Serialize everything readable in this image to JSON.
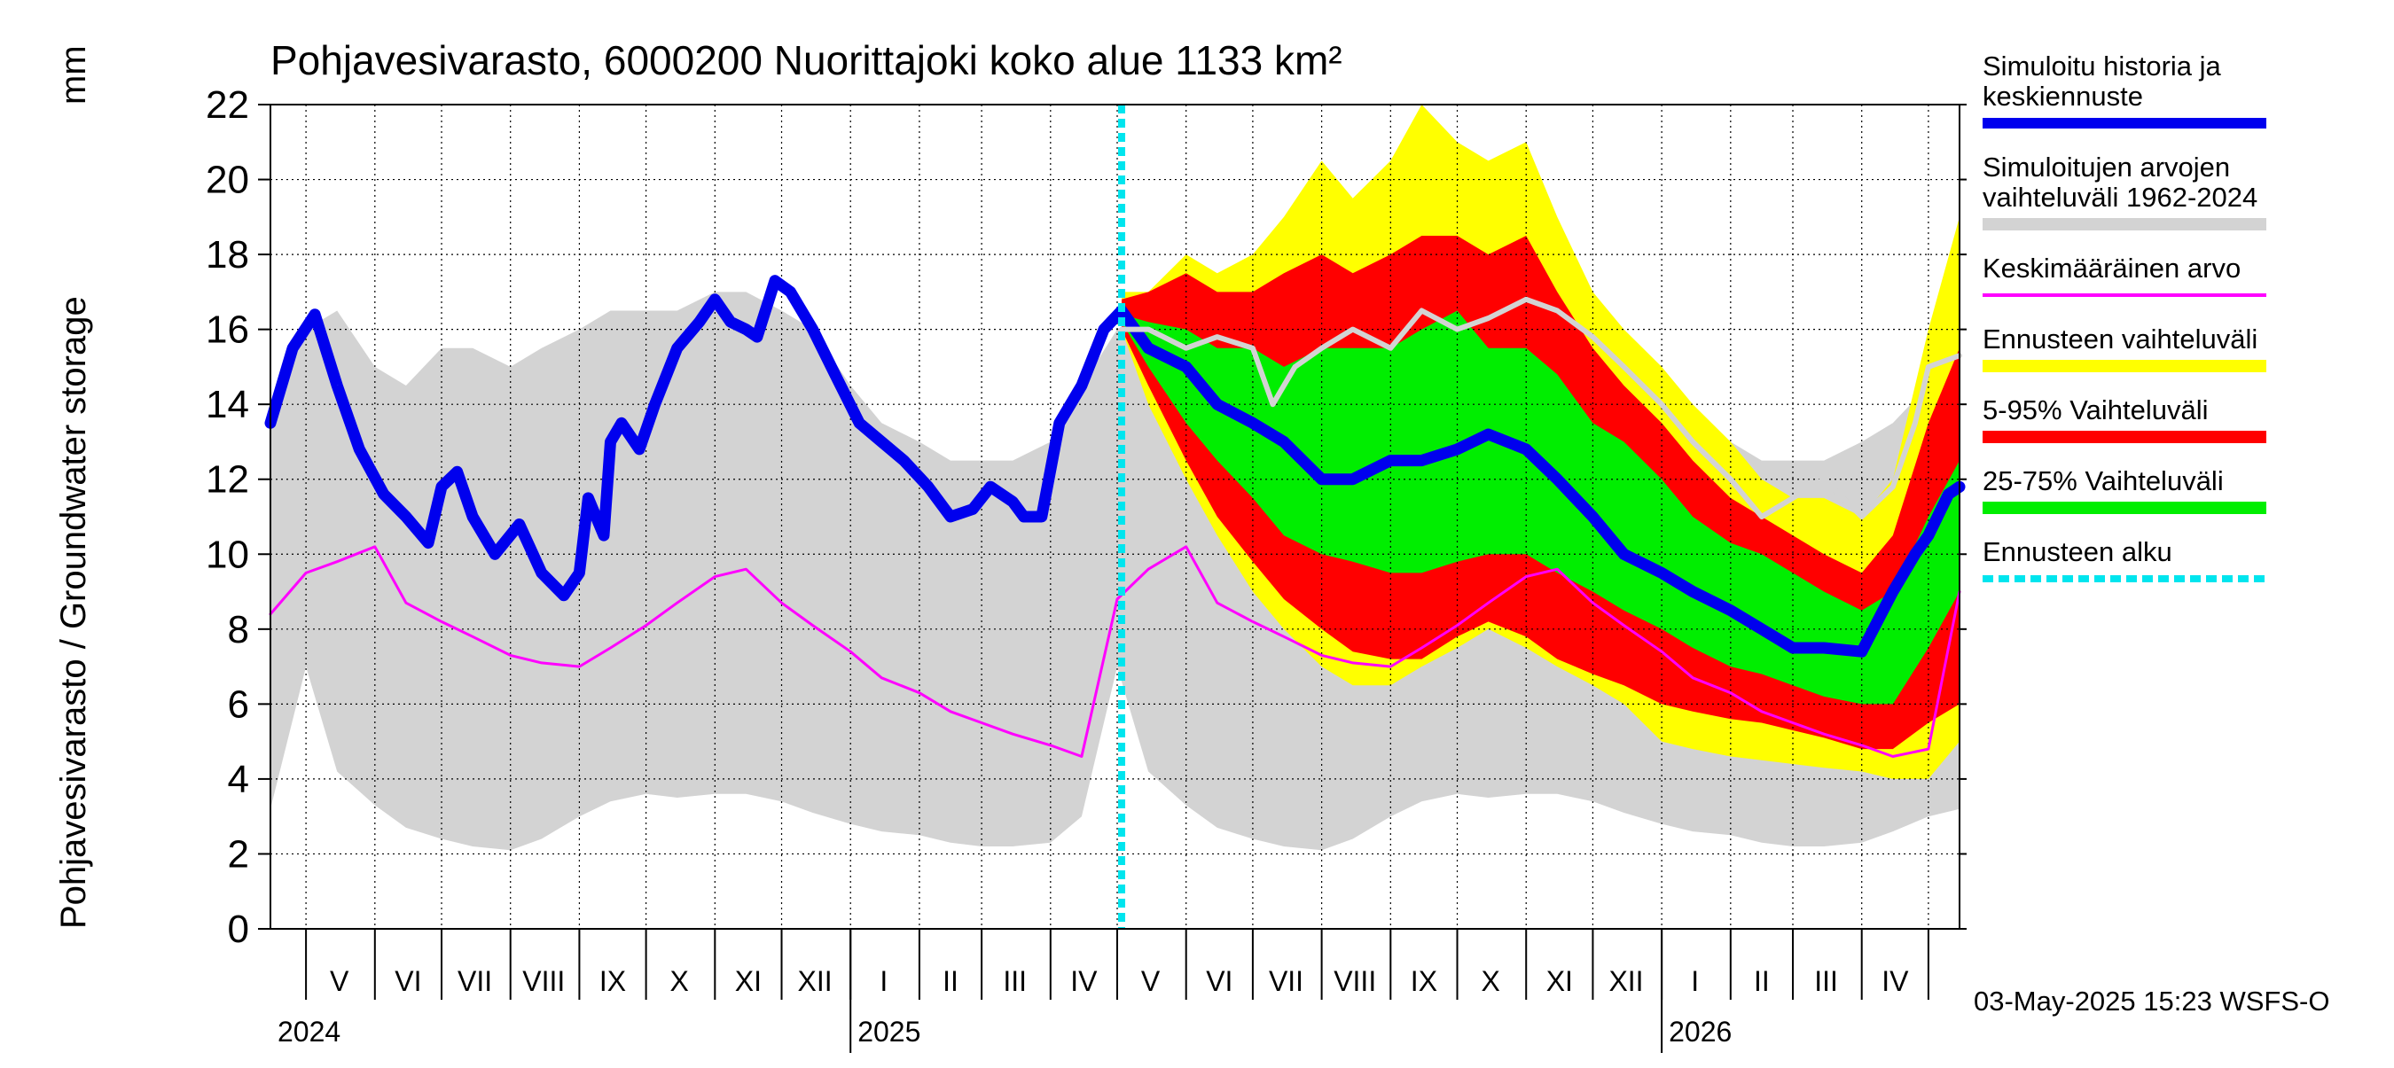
{
  "chart_data": {
    "type": "area",
    "title": "Pohjavesivarasto, 6000200 Nuorittajoki koko alue 1133 km²",
    "ylabel": "Pohjavesivarasto / Groundwater storage",
    "yunit": "mm",
    "ylim": [
      0,
      22
    ],
    "yticks": [
      0,
      2,
      4,
      6,
      8,
      10,
      12,
      14,
      16,
      18,
      20,
      22
    ],
    "xlim": [
      "2024-04-15",
      "2026-05-15"
    ],
    "grid": true,
    "legend_position": "right",
    "footer": "03-May-2025 15:23 WSFS-O",
    "forecast_start": "2025-05-03",
    "months": [
      {
        "label": "V",
        "start": "2024-05-01"
      },
      {
        "label": "VI",
        "start": "2024-06-01"
      },
      {
        "label": "VII",
        "start": "2024-07-01"
      },
      {
        "label": "VIII",
        "start": "2024-08-01"
      },
      {
        "label": "IX",
        "start": "2024-09-01"
      },
      {
        "label": "X",
        "start": "2024-10-01"
      },
      {
        "label": "XI",
        "start": "2024-11-01"
      },
      {
        "label": "XII",
        "start": "2024-12-01"
      },
      {
        "label": "I",
        "start": "2025-01-01"
      },
      {
        "label": "II",
        "start": "2025-02-01"
      },
      {
        "label": "III",
        "start": "2025-03-01"
      },
      {
        "label": "IV",
        "start": "2025-04-01"
      },
      {
        "label": "V",
        "start": "2025-05-01"
      },
      {
        "label": "VI",
        "start": "2025-06-01"
      },
      {
        "label": "VII",
        "start": "2025-07-01"
      },
      {
        "label": "VIII",
        "start": "2025-08-01"
      },
      {
        "label": "IX",
        "start": "2025-09-01"
      },
      {
        "label": "X",
        "start": "2025-10-01"
      },
      {
        "label": "XI",
        "start": "2025-11-01"
      },
      {
        "label": "XII",
        "start": "2025-12-01"
      },
      {
        "label": "I",
        "start": "2026-01-01"
      },
      {
        "label": "II",
        "start": "2026-02-01"
      },
      {
        "label": "III",
        "start": "2026-03-01"
      },
      {
        "label": "IV",
        "start": "2026-04-01"
      }
    ],
    "month_ends": [
      "2026-05-01"
    ],
    "years": [
      {
        "label": "2024",
        "at": "2024-04-15"
      },
      {
        "label": "2025",
        "at": "2025-01-01"
      },
      {
        "label": "2026",
        "at": "2026-01-01"
      }
    ],
    "legend": [
      {
        "text": [
          "Simuloitu historia ja",
          "keskiennuste"
        ],
        "color": "#0000ee",
        "style": "thick"
      },
      {
        "text": [
          "Simuloitujen arvojen",
          "vaihteluväli 1962-2024"
        ],
        "color": "#d3d3d3",
        "style": "band"
      },
      {
        "text": [
          "Keskimääräinen arvo"
        ],
        "color": "#ff00ff",
        "style": "thin"
      },
      {
        "text": [
          "Ennusteen vaihteluväli"
        ],
        "color": "#ffff00",
        "style": "band"
      },
      {
        "text": [
          "5-95% Vaihteluväli"
        ],
        "color": "#ff0000",
        "style": "band"
      },
      {
        "text": [
          "25-75% Vaihteluväli"
        ],
        "color": "#00ee00",
        "style": "band"
      },
      {
        "text": [
          "Ennusteen alku"
        ],
        "color": "#00e5ee",
        "style": "dashed"
      }
    ],
    "series": [
      {
        "name": "Simuloitujen arvojen vaihteluväli 1962-2024",
        "kind": "band",
        "color": "#d3d3d3",
        "x": [
          "2024-04-15",
          "2024-05-01",
          "2024-05-15",
          "2024-06-01",
          "2024-06-15",
          "2024-07-01",
          "2024-07-15",
          "2024-08-01",
          "2024-08-15",
          "2024-09-01",
          "2024-09-15",
          "2024-10-01",
          "2024-10-15",
          "2024-11-01",
          "2024-11-15",
          "2024-12-01",
          "2024-12-15",
          "2025-01-01",
          "2025-01-15",
          "2025-02-01",
          "2025-02-15",
          "2025-03-01",
          "2025-03-15",
          "2025-04-01",
          "2025-04-15",
          "2025-05-01",
          "2025-05-15",
          "2025-06-01",
          "2025-06-15",
          "2025-07-01",
          "2025-07-15",
          "2025-08-01",
          "2025-08-15",
          "2025-09-01",
          "2025-09-15",
          "2025-10-01",
          "2025-10-15",
          "2025-11-01",
          "2025-11-15",
          "2025-12-01",
          "2025-12-15",
          "2026-01-01",
          "2026-01-15",
          "2026-02-01",
          "2026-02-15",
          "2026-03-01",
          "2026-03-15",
          "2026-04-01",
          "2026-04-15",
          "2026-05-01",
          "2026-05-15"
        ],
        "low": [
          3.2,
          7.0,
          4.2,
          3.3,
          2.7,
          2.4,
          2.2,
          2.1,
          2.4,
          3.0,
          3.4,
          3.6,
          3.5,
          3.6,
          3.6,
          3.4,
          3.1,
          2.8,
          2.6,
          2.5,
          2.3,
          2.2,
          2.2,
          2.3,
          3.0,
          7.0,
          4.2,
          3.3,
          2.7,
          2.4,
          2.2,
          2.1,
          2.4,
          3.0,
          3.4,
          3.6,
          3.5,
          3.6,
          3.6,
          3.4,
          3.1,
          2.8,
          2.6,
          2.5,
          2.3,
          2.2,
          2.2,
          2.3,
          2.6,
          3.0,
          3.2
        ],
        "high": [
          14.0,
          16.0,
          16.5,
          15.0,
          14.5,
          15.5,
          15.5,
          15.0,
          15.5,
          16.0,
          16.5,
          16.5,
          16.5,
          17.0,
          17.0,
          16.5,
          16.0,
          14.5,
          13.5,
          13.0,
          12.5,
          12.5,
          12.5,
          13.0,
          14.5,
          16.0,
          16.5,
          15.0,
          14.5,
          15.5,
          15.5,
          15.0,
          15.5,
          16.0,
          16.5,
          16.5,
          16.5,
          17.0,
          17.0,
          16.5,
          16.0,
          14.5,
          13.5,
          13.0,
          12.5,
          12.5,
          12.5,
          13.0,
          13.5,
          14.5,
          15.0
        ]
      },
      {
        "name": "Ennusteen vaihteluväli",
        "kind": "band",
        "color": "#ffff00",
        "x": [
          "2025-05-03",
          "2025-05-15",
          "2025-06-01",
          "2025-06-15",
          "2025-07-01",
          "2025-07-15",
          "2025-08-01",
          "2025-08-15",
          "2025-09-01",
          "2025-09-15",
          "2025-10-01",
          "2025-10-15",
          "2025-11-01",
          "2025-11-15",
          "2025-12-01",
          "2025-12-15",
          "2026-01-01",
          "2026-01-15",
          "2026-02-01",
          "2026-02-15",
          "2026-03-01",
          "2026-03-15",
          "2026-04-01",
          "2026-04-15",
          "2026-05-01",
          "2026-05-15"
        ],
        "low": [
          16.0,
          14.0,
          12.0,
          10.5,
          9.0,
          8.0,
          7.0,
          6.5,
          6.5,
          7.0,
          7.5,
          8.0,
          7.5,
          7.0,
          6.5,
          6.0,
          5.0,
          4.8,
          4.6,
          4.5,
          4.4,
          4.3,
          4.2,
          4.0,
          4.0,
          5.0
        ],
        "high": [
          17.0,
          17.0,
          18.0,
          17.5,
          18.0,
          19.0,
          20.5,
          19.5,
          20.5,
          22.0,
          21.0,
          20.5,
          21.0,
          19.0,
          17.0,
          16.0,
          15.0,
          14.0,
          13.0,
          12.0,
          11.5,
          11.5,
          11.0,
          12.0,
          16.0,
          19.0
        ]
      },
      {
        "name": "5-95% Vaihteluväli",
        "kind": "band",
        "color": "#ff0000",
        "x": [
          "2025-05-03",
          "2025-05-15",
          "2025-06-01",
          "2025-06-15",
          "2025-07-01",
          "2025-07-15",
          "2025-08-01",
          "2025-08-15",
          "2025-09-01",
          "2025-09-15",
          "2025-10-01",
          "2025-10-15",
          "2025-11-01",
          "2025-11-15",
          "2025-12-01",
          "2025-12-15",
          "2026-01-01",
          "2026-01-15",
          "2026-02-01",
          "2026-02-15",
          "2026-03-01",
          "2026-03-15",
          "2026-04-01",
          "2026-04-15",
          "2026-05-01",
          "2026-05-15"
        ],
        "low": [
          16.0,
          14.5,
          12.5,
          11.0,
          9.8,
          8.8,
          8.0,
          7.4,
          7.2,
          7.2,
          7.8,
          8.2,
          7.8,
          7.2,
          6.8,
          6.5,
          6.0,
          5.8,
          5.6,
          5.5,
          5.3,
          5.1,
          4.8,
          4.8,
          5.5,
          6.0
        ],
        "high": [
          16.8,
          17.0,
          17.5,
          17.0,
          17.0,
          17.5,
          18.0,
          17.5,
          18.0,
          18.5,
          18.5,
          18.0,
          18.5,
          17.0,
          15.5,
          14.5,
          13.5,
          12.5,
          11.5,
          11.0,
          10.5,
          10.0,
          9.5,
          10.5,
          13.5,
          15.5
        ]
      },
      {
        "name": "25-75% Vaihteluväli",
        "kind": "band",
        "color": "#00ee00",
        "x": [
          "2025-05-03",
          "2025-05-15",
          "2025-06-01",
          "2025-06-15",
          "2025-07-01",
          "2025-07-15",
          "2025-08-01",
          "2025-08-15",
          "2025-09-01",
          "2025-09-15",
          "2025-10-01",
          "2025-10-15",
          "2025-11-01",
          "2025-11-15",
          "2025-12-01",
          "2025-12-15",
          "2026-01-01",
          "2026-01-15",
          "2026-02-01",
          "2026-02-15",
          "2026-03-01",
          "2026-03-15",
          "2026-04-01",
          "2026-04-15",
          "2026-05-01",
          "2026-05-15"
        ],
        "low": [
          16.2,
          15.0,
          13.5,
          12.5,
          11.5,
          10.5,
          10.0,
          9.8,
          9.5,
          9.5,
          9.8,
          10.0,
          10.0,
          9.5,
          9.0,
          8.5,
          8.0,
          7.5,
          7.0,
          6.8,
          6.5,
          6.2,
          6.0,
          6.0,
          7.5,
          9.0
        ],
        "high": [
          16.4,
          16.2,
          16.0,
          15.5,
          15.5,
          15.0,
          15.5,
          15.5,
          15.5,
          16.0,
          16.5,
          15.5,
          15.5,
          14.8,
          13.5,
          13.0,
          12.0,
          11.0,
          10.3,
          10.0,
          9.5,
          9.0,
          8.5,
          9.0,
          11.0,
          12.5
        ]
      },
      {
        "name": "Keskimääräinen arvo",
        "kind": "line",
        "color": "#ff00ff",
        "x": [
          "2024-04-15",
          "2024-05-01",
          "2024-05-15",
          "2024-06-01",
          "2024-06-15",
          "2024-07-01",
          "2024-07-15",
          "2024-08-01",
          "2024-08-15",
          "2024-09-01",
          "2024-09-15",
          "2024-10-01",
          "2024-10-15",
          "2024-11-01",
          "2024-11-15",
          "2024-12-01",
          "2024-12-15",
          "2025-01-01",
          "2025-01-15",
          "2025-02-01",
          "2025-02-15",
          "2025-03-01",
          "2025-03-15",
          "2025-04-01",
          "2025-04-15",
          "2025-05-01",
          "2025-05-15",
          "2025-06-01",
          "2025-06-15",
          "2025-07-01",
          "2025-07-15",
          "2025-08-01",
          "2025-08-15",
          "2025-09-01",
          "2025-09-15",
          "2025-10-01",
          "2025-10-15",
          "2025-11-01",
          "2025-11-15",
          "2025-12-01",
          "2025-12-15",
          "2026-01-01",
          "2026-01-15",
          "2026-02-01",
          "2026-02-15",
          "2026-03-01",
          "2026-03-15",
          "2026-04-01",
          "2026-04-15",
          "2026-05-01",
          "2026-05-15"
        ],
        "values": [
          8.4,
          9.5,
          9.8,
          10.2,
          8.7,
          8.2,
          7.8,
          7.3,
          7.1,
          7.0,
          7.5,
          8.1,
          8.7,
          9.4,
          9.6,
          8.7,
          8.1,
          7.4,
          6.7,
          6.3,
          5.8,
          5.5,
          5.2,
          4.9,
          4.6,
          8.8,
          9.6,
          10.2,
          8.7,
          8.2,
          7.8,
          7.3,
          7.1,
          7.0,
          7.5,
          8.1,
          8.7,
          9.4,
          9.6,
          8.7,
          8.1,
          7.4,
          6.7,
          6.3,
          5.8,
          5.5,
          5.2,
          4.9,
          4.6,
          4.8,
          9.0
        ]
      },
      {
        "name": "Simuloitu historia ja keskiennuste",
        "kind": "line",
        "color": "#0000ee",
        "x": [
          "2024-04-15",
          "2024-04-25",
          "2024-05-05",
          "2024-05-15",
          "2024-05-25",
          "2024-06-05",
          "2024-06-15",
          "2024-06-25",
          "2024-07-01",
          "2024-07-08",
          "2024-07-15",
          "2024-07-25",
          "2024-08-05",
          "2024-08-15",
          "2024-08-25",
          "2024-09-01",
          "2024-09-05",
          "2024-09-12",
          "2024-09-15",
          "2024-09-20",
          "2024-09-28",
          "2024-10-05",
          "2024-10-15",
          "2024-10-25",
          "2024-11-01",
          "2024-11-08",
          "2024-11-15",
          "2024-11-20",
          "2024-11-28",
          "2024-12-05",
          "2024-12-15",
          "2024-12-25",
          "2025-01-05",
          "2025-01-15",
          "2025-01-25",
          "2025-02-05",
          "2025-02-15",
          "2025-02-25",
          "2025-03-05",
          "2025-03-15",
          "2025-03-20",
          "2025-03-28",
          "2025-04-05",
          "2025-04-15",
          "2025-04-25",
          "2025-05-03",
          "2025-05-15",
          "2025-06-01",
          "2025-06-15",
          "2025-07-01",
          "2025-07-15",
          "2025-08-01",
          "2025-08-15",
          "2025-09-01",
          "2025-09-15",
          "2025-10-01",
          "2025-10-15",
          "2025-11-01",
          "2025-11-15",
          "2025-12-01",
          "2025-12-15",
          "2026-01-01",
          "2026-01-15",
          "2026-02-01",
          "2026-02-15",
          "2026-03-01",
          "2026-03-15",
          "2026-04-01",
          "2026-04-15",
          "2026-04-25",
          "2026-05-01",
          "2026-05-10",
          "2026-05-15"
        ],
        "values": [
          13.5,
          15.5,
          16.4,
          14.5,
          12.8,
          11.6,
          11.0,
          10.3,
          11.8,
          12.2,
          11.0,
          10.0,
          10.8,
          9.5,
          8.9,
          9.5,
          11.5,
          10.5,
          13.0,
          13.5,
          12.8,
          14.0,
          15.5,
          16.2,
          16.8,
          16.2,
          16.0,
          15.8,
          17.3,
          17.0,
          16.0,
          14.8,
          13.5,
          13.0,
          12.5,
          11.8,
          11.0,
          11.2,
          11.8,
          11.4,
          11.0,
          11.0,
          13.5,
          14.5,
          16.0,
          16.5,
          15.5,
          15.0,
          14.0,
          13.5,
          13.0,
          12.0,
          12.0,
          12.5,
          12.5,
          12.8,
          13.2,
          12.8,
          12.0,
          11.0,
          10.0,
          9.5,
          9.0,
          8.5,
          8.0,
          7.5,
          7.5,
          7.4,
          9.0,
          10.0,
          10.5,
          11.6,
          11.8
        ]
      },
      {
        "name": "Simuloitujen arvojen keskiennuste (harmaa)",
        "kind": "line",
        "color": "#d3d3d3",
        "x": [
          "2025-05-03",
          "2025-05-15",
          "2025-06-01",
          "2025-06-15",
          "2025-07-01",
          "2025-07-10",
          "2025-07-20",
          "2025-08-01",
          "2025-08-15",
          "2025-09-01",
          "2025-09-15",
          "2025-10-01",
          "2025-10-15",
          "2025-11-01",
          "2025-11-15",
          "2025-12-01",
          "2025-12-15",
          "2026-01-01",
          "2026-01-15",
          "2026-02-01",
          "2026-02-15",
          "2026-03-01",
          "2026-03-15",
          "2026-04-01",
          "2026-04-15",
          "2026-04-25",
          "2026-05-01",
          "2026-05-15"
        ],
        "values": [
          16.0,
          16.0,
          15.5,
          15.8,
          15.5,
          14.0,
          15.0,
          15.5,
          16.0,
          15.5,
          16.5,
          16.0,
          16.3,
          16.8,
          16.5,
          15.8,
          15.0,
          14.0,
          13.0,
          12.0,
          11.0,
          11.5,
          12.0,
          11.0,
          11.8,
          13.5,
          15.0,
          15.3
        ]
      }
    ]
  }
}
